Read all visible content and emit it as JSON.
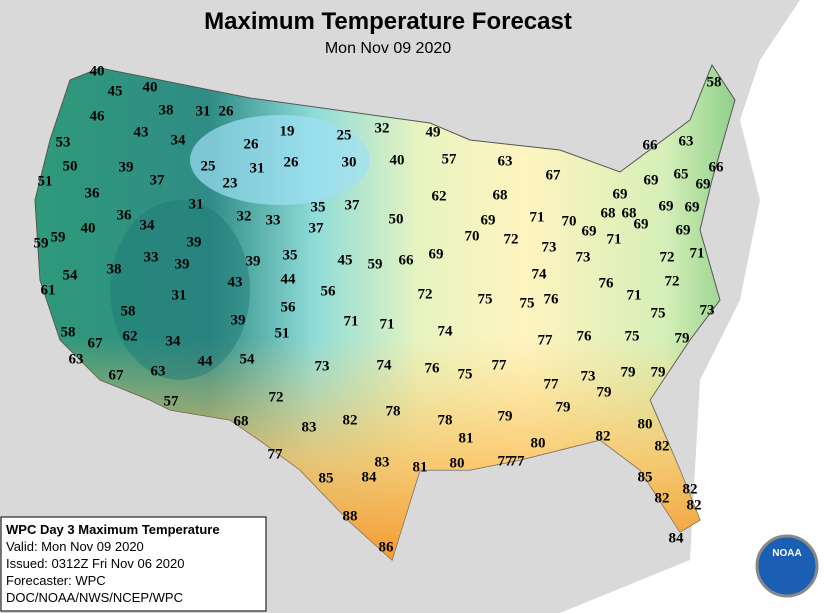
{
  "header": {
    "title": "Maximum Temperature Forecast",
    "subtitle": "Mon Nov 09 2020"
  },
  "info": {
    "lines": [
      "WPC Day 3 Maximum Temperature",
      "Valid: Mon Nov 09 2020",
      "Issued: 0312Z Fri Nov 06 2020",
      "Forecaster: WPC",
      "DOC/NOAA/NWS/NCEP/WPC"
    ]
  },
  "logo": "NOAA",
  "temperatures": [
    40,
    45,
    40,
    46,
    38,
    31,
    26,
    19,
    25,
    32,
    49,
    53,
    43,
    34,
    26,
    50,
    39,
    25,
    31,
    26,
    30,
    40,
    57,
    63,
    67,
    66,
    63,
    58,
    51,
    37,
    23,
    65,
    66,
    69,
    69,
    69,
    62,
    68,
    36,
    31,
    35,
    37,
    69,
    68,
    68,
    69,
    36,
    34,
    32,
    33,
    37,
    50,
    69,
    71,
    70,
    69,
    69,
    40,
    39,
    70,
    72,
    73,
    71,
    69,
    59,
    59,
    54,
    38,
    33,
    39,
    39,
    35,
    45,
    59,
    66,
    69,
    73,
    72,
    71,
    74,
    76,
    72,
    43,
    44,
    61,
    56,
    72,
    75,
    75,
    76,
    71,
    31,
    56,
    58,
    71,
    71,
    74,
    75,
    73,
    39,
    58,
    67,
    62,
    51,
    77,
    76,
    75,
    79,
    34,
    63,
    44,
    54,
    73,
    74,
    76,
    77,
    79,
    79,
    67,
    63,
    75,
    73,
    77,
    79,
    72,
    57,
    79,
    79,
    80,
    68,
    83,
    82,
    78,
    78,
    82,
    81,
    80,
    82,
    77,
    83,
    85,
    84,
    81,
    80,
    77,
    77,
    85,
    82,
    82,
    82,
    88,
    86,
    84
  ]
}
